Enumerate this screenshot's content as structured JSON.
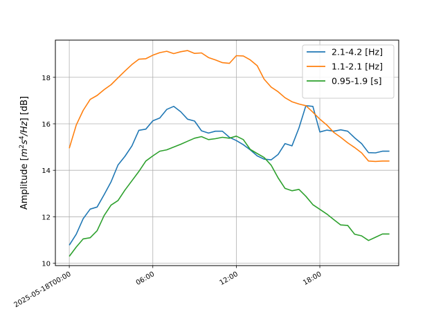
{
  "chart_data": {
    "type": "line",
    "title": "",
    "xlabel": "",
    "ylabel": "Amplitude [m²s⁴/Hz] [dB]",
    "ylabel_parts": {
      "pre": "Amplitude [",
      "m": "m",
      "two": "2",
      "s": "s",
      "four": "4",
      "hz": "/Hz",
      "post": "] [dB]"
    },
    "xlim": [
      "2025-05-17T23:00",
      "2025-05-18T23:40"
    ],
    "ylim": [
      9.9,
      19.6
    ],
    "xticks": [
      {
        "time": "2025-05-18T00:00",
        "label": "2025-05-18T00:00"
      },
      {
        "time": "2025-05-18T06:00",
        "label": "06:00"
      },
      {
        "time": "2025-05-18T12:00",
        "label": "12:00"
      },
      {
        "time": "2025-05-18T18:00",
        "label": "18:00"
      }
    ],
    "yticks": [
      10,
      12,
      14,
      16,
      18
    ],
    "grid": true,
    "legend_position": "top-right",
    "x": [
      "00:00",
      "00:30",
      "01:00",
      "01:30",
      "02:00",
      "02:30",
      "03:00",
      "03:30",
      "04:00",
      "04:30",
      "05:00",
      "05:30",
      "06:00",
      "06:30",
      "07:00",
      "07:30",
      "08:00",
      "08:30",
      "09:00",
      "09:30",
      "10:00",
      "10:30",
      "11:00",
      "11:30",
      "12:00",
      "12:30",
      "13:00",
      "13:30",
      "14:00",
      "14:30",
      "15:00",
      "15:30",
      "16:00",
      "16:30",
      "17:00",
      "17:30",
      "18:00",
      "18:30",
      "19:00",
      "19:30",
      "20:00",
      "20:30",
      "21:00",
      "21:30",
      "22:00",
      "22:30",
      "23:00"
    ],
    "series": [
      {
        "name": "2.1-4.2 [Hz]",
        "color": "#1f77b4",
        "values": [
          10.78,
          11.25,
          11.92,
          12.33,
          12.42,
          12.95,
          13.5,
          14.23,
          14.6,
          15.05,
          15.72,
          15.77,
          16.13,
          16.25,
          16.62,
          16.75,
          16.52,
          16.2,
          16.12,
          15.7,
          15.6,
          15.68,
          15.68,
          15.42,
          15.28,
          15.1,
          14.88,
          14.62,
          14.48,
          14.45,
          14.68,
          15.15,
          15.05,
          15.82,
          16.78,
          16.75,
          15.65,
          15.73,
          15.68,
          15.74,
          15.68,
          15.4,
          15.15,
          14.76,
          14.75,
          14.82,
          14.82
        ]
      },
      {
        "name": "1.1-2.1 [Hz]",
        "color": "#ff7f0e",
        "values": [
          14.95,
          15.95,
          16.58,
          17.05,
          17.22,
          17.47,
          17.68,
          17.98,
          18.27,
          18.55,
          18.78,
          18.8,
          18.95,
          19.06,
          19.12,
          19.02,
          19.1,
          19.15,
          19.03,
          19.05,
          18.85,
          18.75,
          18.63,
          18.6,
          18.93,
          18.92,
          18.75,
          18.5,
          17.92,
          17.58,
          17.38,
          17.12,
          16.95,
          16.85,
          16.78,
          16.5,
          16.2,
          15.95,
          15.63,
          15.42,
          15.18,
          14.98,
          14.75,
          14.4,
          14.38,
          14.4,
          14.4
        ]
      },
      {
        "name": "0.95-1.9 [s]",
        "color": "#2ca02c",
        "values": [
          10.3,
          10.7,
          11.05,
          11.1,
          11.4,
          12.05,
          12.5,
          12.7,
          13.15,
          13.55,
          13.95,
          14.4,
          14.62,
          14.82,
          14.88,
          15.0,
          15.12,
          15.25,
          15.38,
          15.45,
          15.32,
          15.36,
          15.42,
          15.38,
          15.47,
          15.32,
          14.9,
          14.72,
          14.55,
          14.22,
          13.68,
          13.22,
          13.12,
          13.18,
          12.88,
          12.52,
          12.32,
          12.12,
          11.88,
          11.65,
          11.63,
          11.25,
          11.18,
          10.98,
          11.12,
          11.26,
          11.26
        ]
      }
    ]
  }
}
